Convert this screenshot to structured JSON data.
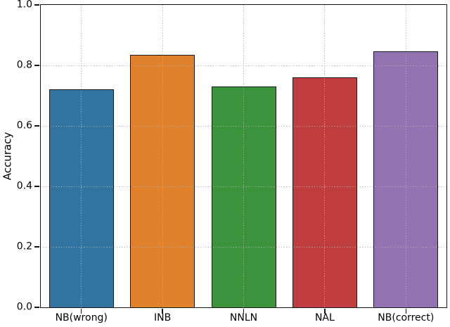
{
  "chart_data": {
    "type": "bar",
    "title": "",
    "xlabel": "",
    "ylabel": "Accuracy",
    "categories": [
      "NB(wrong)",
      "INB",
      "NNLN",
      "NAL",
      "NB(correct)"
    ],
    "values": [
      0.72,
      0.835,
      0.73,
      0.76,
      0.847
    ],
    "bar_colors": [
      "#3274a1",
      "#e1812c",
      "#3a923a",
      "#c03d3e",
      "#9372b2"
    ],
    "bar_edge_color": "#1a1a1a",
    "ylim": [
      0.0,
      1.0
    ],
    "yticks": [
      0.0,
      0.2,
      0.4,
      0.6,
      0.8,
      1.0
    ],
    "ytick_labels": [
      "0.0",
      "0.2",
      "0.4",
      "0.6",
      "0.8",
      "1.0"
    ],
    "grid": {
      "style": "dotted",
      "color": "#b0b0b0",
      "axes": "both",
      "above_bars": true
    },
    "legend_position": "none",
    "background": "#ffffff"
  }
}
